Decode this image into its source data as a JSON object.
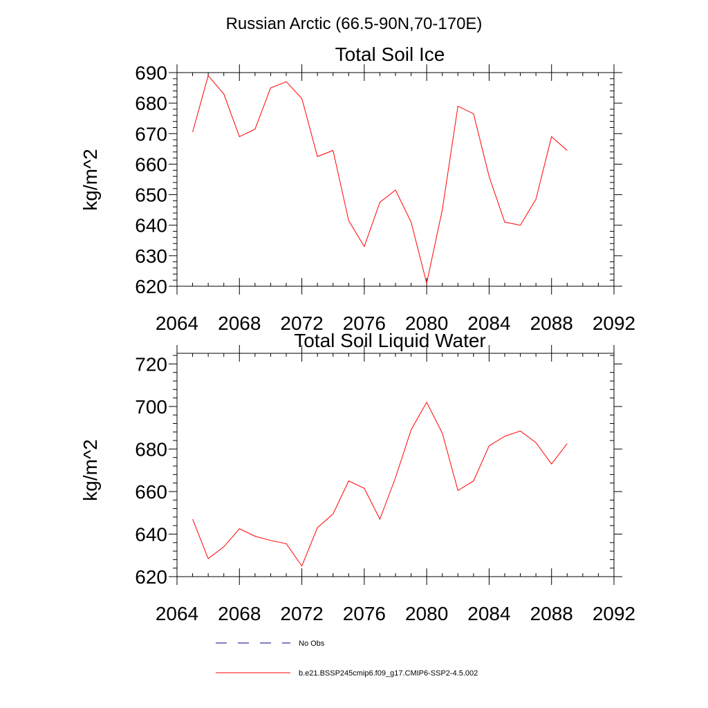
{
  "title": "Russian Arctic (66.5-90N,70-170E)",
  "colors": {
    "model": "#ff0000",
    "obs": "#000080",
    "axis": "#000000"
  },
  "chart_data": [
    {
      "type": "line",
      "title": "Total Soil Ice",
      "ylabel": "kg/m^2",
      "xlim": [
        2064,
        2092
      ],
      "ylim": [
        620,
        690
      ],
      "xticks": [
        2064,
        2068,
        2072,
        2076,
        2080,
        2084,
        2088,
        2092
      ],
      "yticks": [
        620,
        630,
        640,
        650,
        660,
        670,
        680,
        690
      ],
      "series": [
        {
          "name": "b.e21.BSSP245cmip6.f09_g17.CMIP6-SSP2-4.5.002",
          "x": [
            2065,
            2066,
            2067,
            2068,
            2069,
            2070,
            2071,
            2072,
            2073,
            2074,
            2075,
            2076,
            2077,
            2078,
            2079,
            2080,
            2081,
            2082,
            2083,
            2084,
            2085,
            2086,
            2087,
            2088,
            2089
          ],
          "y": [
            670.5,
            689,
            683,
            669,
            671.5,
            685,
            687,
            681.5,
            662.5,
            664.5,
            641.5,
            633,
            647.5,
            651.5,
            641,
            621,
            645,
            679,
            676.5,
            656,
            641,
            640,
            648.5,
            669,
            664.5
          ]
        }
      ]
    },
    {
      "type": "line",
      "title": "Total Soil Liquid Water",
      "ylabel": "kg/m^2",
      "xlim": [
        2064,
        2092
      ],
      "ylim": [
        620,
        725
      ],
      "xticks": [
        2064,
        2068,
        2072,
        2076,
        2080,
        2084,
        2088,
        2092
      ],
      "yticks": [
        620,
        640,
        660,
        680,
        700,
        720
      ],
      "series": [
        {
          "name": "b.e21.BSSP245cmip6.f09_g17.CMIP6-SSP2-4.5.002",
          "x": [
            2065,
            2066,
            2067,
            2068,
            2069,
            2070,
            2071,
            2072,
            2073,
            2074,
            2075,
            2076,
            2077,
            2078,
            2079,
            2080,
            2081,
            2082,
            2083,
            2084,
            2085,
            2086,
            2087,
            2088,
            2089
          ],
          "y": [
            647,
            628.5,
            634,
            642.5,
            639,
            637,
            635.5,
            625,
            643,
            649.5,
            665,
            661.5,
            647,
            666.5,
            689,
            702,
            687.5,
            660.5,
            665,
            681.5,
            686,
            688.5,
            683,
            673,
            682.5
          ]
        }
      ]
    }
  ],
  "legend": {
    "items": [
      {
        "label": "No Obs",
        "style": "dashed",
        "color": "#000080"
      },
      {
        "label": "b.e21.BSSP245cmip6.f09_g17.CMIP6-SSP2-4.5.002",
        "style": "solid",
        "color": "#ff0000"
      }
    ]
  }
}
